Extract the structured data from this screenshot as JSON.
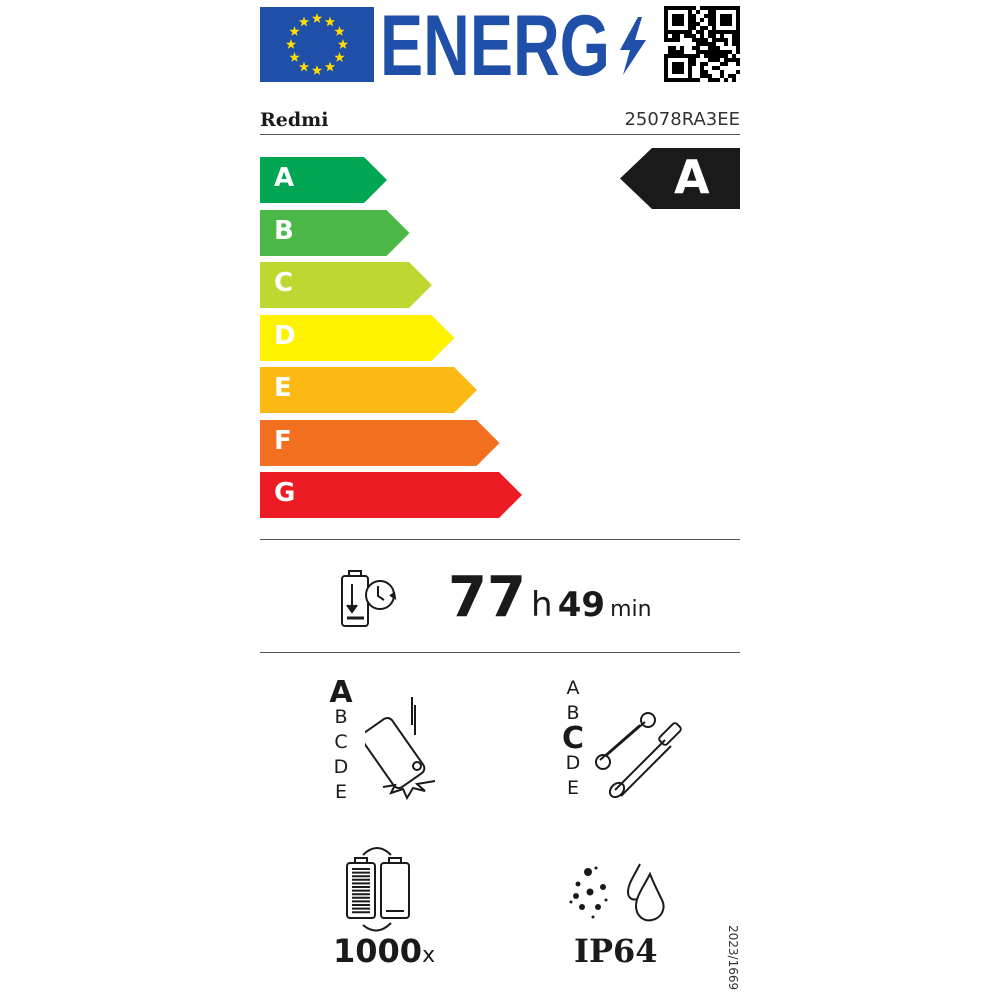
{
  "header": {
    "logo_text": "ENERG",
    "brand": "Redmi",
    "model": "25078RA3EE"
  },
  "scale": {
    "classes": [
      {
        "label": "A",
        "color": "#00a651"
      },
      {
        "label": "B",
        "color": "#4cb848"
      },
      {
        "label": "C",
        "color": "#bfd730"
      },
      {
        "label": "D",
        "color": "#fff200"
      },
      {
        "label": "E",
        "color": "#fdb913"
      },
      {
        "label": "F",
        "color": "#f37021"
      },
      {
        "label": "G",
        "color": "#ed1c24"
      }
    ],
    "rating": "A"
  },
  "endurance": {
    "hours": "77",
    "hours_unit": "h",
    "minutes": "49",
    "minutes_unit": "min"
  },
  "drop_resistance": {
    "classes": [
      "A",
      "B",
      "C",
      "D",
      "E"
    ],
    "rating": "A"
  },
  "repairability": {
    "classes": [
      "A",
      "B",
      "C",
      "D",
      "E"
    ],
    "rating": "C"
  },
  "battery_cycles": {
    "value": "1000",
    "unit": "x"
  },
  "ingress_protection": {
    "value": "IP64"
  },
  "regulation": "2023/1669",
  "colors": {
    "eu_blue": "#1f4fa8",
    "star_yellow": "#ffdd00"
  }
}
